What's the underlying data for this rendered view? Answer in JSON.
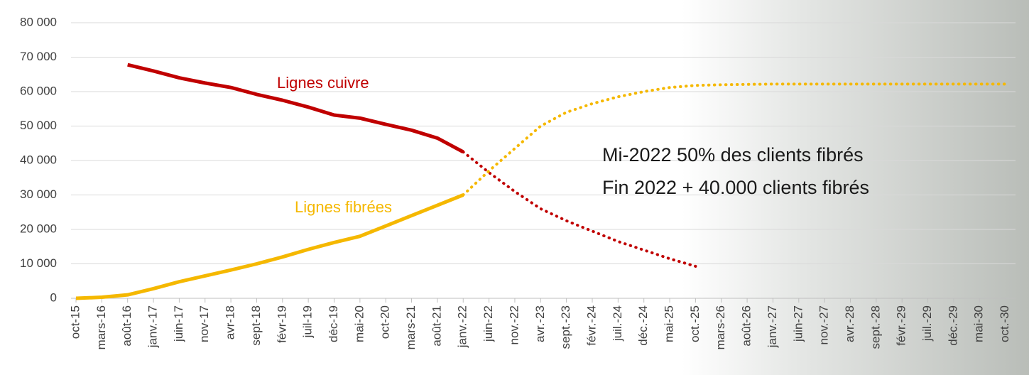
{
  "chart_data": {
    "type": "line",
    "categories": [
      "oct-15",
      "mars-16",
      "août-16",
      "janv.-17",
      "juin-17",
      "nov-17",
      "avr-18",
      "sept-18",
      "févr-19",
      "juil-19",
      "déc-19",
      "mai-20",
      "oct-20",
      "mars-21",
      "août-21",
      "janv.-22",
      "juin-22",
      "nov.-22",
      "avr.-23",
      "sept.-23",
      "févr.-24",
      "juil.-24",
      "déc.-24",
      "mai-25",
      "oct.-25",
      "mars-26",
      "août-26",
      "janv.-27",
      "juin-27",
      "nov.-27",
      "avr.-28",
      "sept.-28",
      "févr.-29",
      "juil.-29",
      "déc.-29",
      "mai-30",
      "oct.-30"
    ],
    "series": [
      {
        "name": "Lignes cuivre",
        "color": "#c00000",
        "values": [
          null,
          null,
          67800,
          66000,
          64000,
          62500,
          61200,
          59200,
          57500,
          55500,
          53200,
          52300,
          50500,
          48800,
          46500,
          42500,
          null,
          null,
          null,
          null,
          null,
          null,
          null,
          null,
          null,
          null,
          null,
          null,
          null,
          null,
          null,
          null,
          null,
          null,
          null,
          null,
          null
        ],
        "forecast": [
          null,
          null,
          null,
          null,
          null,
          null,
          null,
          null,
          null,
          null,
          null,
          null,
          null,
          null,
          null,
          42500,
          36500,
          31000,
          26000,
          22500,
          19500,
          16500,
          14000,
          11500,
          9300,
          null,
          null,
          null,
          null,
          null,
          null,
          null,
          null,
          null,
          null,
          null,
          null
        ]
      },
      {
        "name": "Lignes fibrées",
        "color": "#f5b800",
        "values": [
          0,
          300,
          1000,
          2800,
          4800,
          6500,
          8200,
          10000,
          12000,
          14200,
          16200,
          18000,
          21000,
          24000,
          27000,
          30000,
          null,
          null,
          null,
          null,
          null,
          null,
          null,
          null,
          null,
          null,
          null,
          null,
          null,
          null,
          null,
          null,
          null,
          null,
          null,
          null,
          null
        ],
        "forecast": [
          null,
          null,
          null,
          null,
          null,
          null,
          null,
          null,
          null,
          null,
          null,
          null,
          null,
          null,
          null,
          30000,
          37000,
          43500,
          50000,
          54000,
          56500,
          58500,
          60000,
          61200,
          61800,
          62000,
          62100,
          62200,
          62200,
          62200,
          62200,
          62200,
          62200,
          62200,
          62200,
          62200,
          62200
        ]
      }
    ],
    "notes": [
      "Mi-2022 50% des clients fibrés",
      "Fin 2022 + 40.000 clients fibrés"
    ],
    "ylim": [
      0,
      80000
    ],
    "yticks": [
      0,
      {
        "value": 10000,
        "label": "10 000"
      },
      {
        "value": 20000,
        "label": "20 000"
      },
      {
        "value": 30000,
        "label": "30 000"
      },
      {
        "value": 40000,
        "label": "40 000"
      },
      {
        "value": 50000,
        "label": "50 000"
      },
      {
        "value": 60000,
        "label": "60 000"
      },
      {
        "value": 70000,
        "label": "70 000"
      },
      {
        "value": 80000,
        "label": "80 000"
      }
    ],
    "grid": true
  }
}
